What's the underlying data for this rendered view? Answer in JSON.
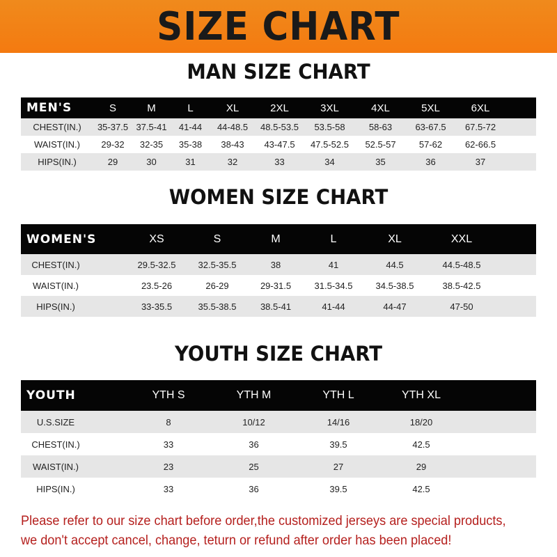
{
  "title": "SIZE CHART",
  "tables": [
    {
      "key": "men",
      "title": "MAN SIZE CHART",
      "header": [
        "MEN'S",
        "S",
        "M",
        "L",
        "XL",
        "2XL",
        "3XL",
        "4XL",
        "5XL",
        "6XL"
      ],
      "rows": [
        [
          "CHEST(IN.)",
          "35-37.5",
          "37.5-41",
          "41-44",
          "44-48.5",
          "48.5-53.5",
          "53.5-58",
          "58-63",
          "63-67.5",
          "67.5-72"
        ],
        [
          "WAIST(IN.)",
          "29-32",
          "32-35",
          "35-38",
          "38-43",
          "43-47.5",
          "47.5-52.5",
          "52.5-57",
          "57-62",
          "62-66.5"
        ],
        [
          "HIPS(IN.)",
          "29",
          "30",
          "31",
          "32",
          "33",
          "34",
          "35",
          "36",
          "37"
        ]
      ]
    },
    {
      "key": "women",
      "title": "WOMEN SIZE CHART",
      "header": [
        "WOMEN'S",
        "XS",
        "S",
        "M",
        "L",
        "XL",
        "XXL"
      ],
      "rows": [
        [
          "CHEST(IN.)",
          "29.5-32.5",
          "32.5-35.5",
          "38",
          "41",
          "44.5",
          "44.5-48.5"
        ],
        [
          "WAIST(IN.)",
          "23.5-26",
          "26-29",
          "29-31.5",
          "31.5-34.5",
          "34.5-38.5",
          "38.5-42.5"
        ],
        [
          "HIPS(IN.)",
          "33-35.5",
          "35.5-38.5",
          "38.5-41",
          "41-44",
          "44-47",
          "47-50"
        ]
      ]
    },
    {
      "key": "youth",
      "title": "YOUTH SIZE CHART",
      "header": [
        "YOUTH",
        "YTH S",
        "YTH M",
        "YTH L",
        "YTH XL"
      ],
      "rows": [
        [
          "U.S.SIZE",
          "8",
          "10/12",
          "14/16",
          "18/20"
        ],
        [
          "CHEST(IN.)",
          "33",
          "36",
          "39.5",
          "42.5"
        ],
        [
          "WAIST(IN.)",
          "23",
          "25",
          "27",
          "29"
        ],
        [
          "HIPS(IN.)",
          "33",
          "36",
          "39.5",
          "42.5"
        ]
      ]
    }
  ],
  "notice": [
    "Please refer to our size chart before order,the customized jerseys are special products,",
    "we don't accept cancel, change, teturn or refund after order has been placed!"
  ],
  "colors": {
    "banner": "#f47a10",
    "header_bar": "#050505",
    "row_alt": "#e6e6e6",
    "notice": "#b5201e"
  }
}
